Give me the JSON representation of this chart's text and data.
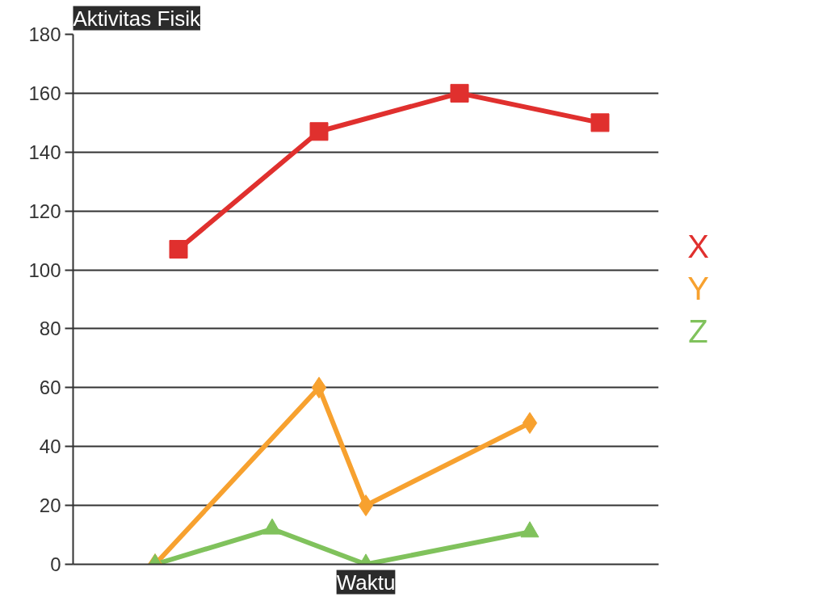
{
  "chart_data": {
    "type": "line",
    "title": "Aktivitas Fisik",
    "xlabel": "Waktu",
    "categories": [
      null,
      null,
      null,
      null,
      null,
      null,
      null,
      null,
      null,
      null,
      null,
      null,
      null,
      null,
      null,
      null,
      null,
      null,
      null,
      null,
      null,
      null,
      null,
      null,
      null
    ],
    "ylim": [
      0,
      180
    ],
    "yticks": [
      0,
      20,
      40,
      60,
      80,
      100,
      120,
      140,
      160,
      180
    ],
    "grid": "y",
    "series": [
      {
        "name": "X",
        "color": "#e0302e",
        "marker": "square",
        "values": [
          null,
          null,
          null,
          null,
          107,
          null,
          null,
          null,
          null,
          null,
          147,
          null,
          null,
          null,
          null,
          null,
          160,
          null,
          null,
          null,
          null,
          null,
          150,
          null,
          null
        ]
      },
      {
        "name": "Y",
        "color": "#f7a12f",
        "marker": "diamond",
        "values": [
          null,
          null,
          null,
          0,
          null,
          null,
          null,
          null,
          null,
          null,
          60,
          null,
          20,
          null,
          null,
          null,
          null,
          null,
          null,
          48,
          null,
          null,
          null,
          null,
          null
        ]
      },
      {
        "name": "Z",
        "color": "#80c25c",
        "marker": "triangle",
        "values": [
          null,
          null,
          null,
          0,
          null,
          null,
          null,
          null,
          12,
          null,
          null,
          null,
          0,
          null,
          null,
          null,
          null,
          null,
          null,
          11,
          null,
          null,
          null,
          null,
          null
        ]
      }
    ]
  }
}
